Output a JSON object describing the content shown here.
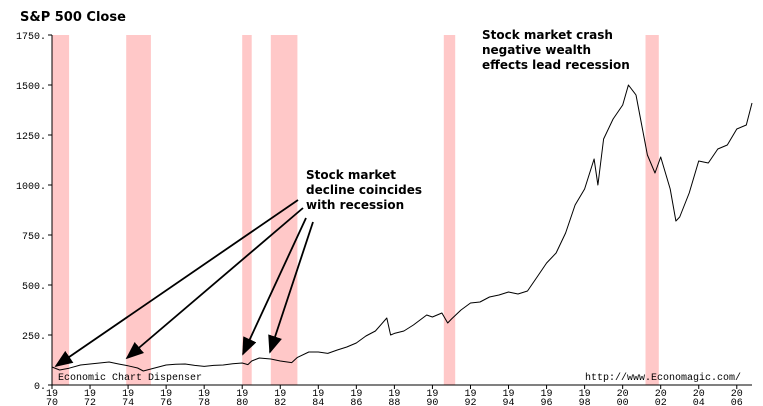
{
  "chart_data": {
    "type": "line",
    "title": "S&P 500 Close",
    "xlabel": "",
    "ylabel": "",
    "xlim": [
      1970,
      2006.8
    ],
    "ylim": [
      0,
      1750
    ],
    "yticks": [
      0,
      250,
      500,
      750,
      1000,
      1250,
      1500,
      1750
    ],
    "ytick_labels": [
      "0.",
      "250.",
      "500.",
      "750.",
      "1000.",
      "1250.",
      "1500.",
      "1750."
    ],
    "xticks": [
      {
        "year": 1970,
        "top": "19",
        "bottom": "70"
      },
      {
        "year": 1972,
        "top": "19",
        "bottom": "72"
      },
      {
        "year": 1974,
        "top": "19",
        "bottom": "74"
      },
      {
        "year": 1976,
        "top": "19",
        "bottom": "76"
      },
      {
        "year": 1978,
        "top": "19",
        "bottom": "78"
      },
      {
        "year": 1980,
        "top": "19",
        "bottom": "80"
      },
      {
        "year": 1982,
        "top": "19",
        "bottom": "82"
      },
      {
        "year": 1984,
        "top": "19",
        "bottom": "84"
      },
      {
        "year": 1986,
        "top": "19",
        "bottom": "86"
      },
      {
        "year": 1988,
        "top": "19",
        "bottom": "88"
      },
      {
        "year": 1990,
        "top": "19",
        "bottom": "90"
      },
      {
        "year": 1992,
        "top": "19",
        "bottom": "92"
      },
      {
        "year": 1994,
        "top": "19",
        "bottom": "94"
      },
      {
        "year": 1996,
        "top": "19",
        "bottom": "96"
      },
      {
        "year": 1998,
        "top": "19",
        "bottom": "98"
      },
      {
        "year": 2000,
        "top": "20",
        "bottom": "00"
      },
      {
        "year": 2002,
        "top": "20",
        "bottom": "02"
      },
      {
        "year": 2004,
        "top": "20",
        "bottom": "04"
      },
      {
        "year": 2006,
        "top": "20",
        "bottom": "06"
      }
    ],
    "recessions": [
      [
        1970.0,
        1970.9
      ],
      [
        1973.9,
        1975.2
      ],
      [
        1980.0,
        1980.5
      ],
      [
        1981.5,
        1982.9
      ],
      [
        1990.6,
        1991.2
      ],
      [
        2001.2,
        2001.9
      ]
    ],
    "series": [
      {
        "x": [
          1970.0,
          1970.4,
          1970.9,
          1971.5,
          1972.0,
          1972.5,
          1973.0,
          1973.5,
          1974.0,
          1974.5,
          1974.8,
          1975.2,
          1975.6,
          1976.0,
          1976.5,
          1977.0,
          1977.5,
          1978.0,
          1978.5,
          1979.0,
          1979.5,
          1980.0,
          1980.3,
          1980.5,
          1980.9,
          1981.5,
          1982.0,
          1982.6,
          1982.9,
          1983.5,
          1984.0,
          1984.5,
          1985.0,
          1985.5,
          1986.0,
          1986.5,
          1987.0,
          1987.6,
          1987.8,
          1988.0,
          1988.5,
          1989.0,
          1989.7,
          1990.0,
          1990.5,
          1990.8,
          1991.0,
          1991.5,
          1992.0,
          1992.5,
          1993.0,
          1993.5,
          1994.0,
          1994.5,
          1995.0,
          1995.5,
          1996.0,
          1996.5,
          1997.0,
          1997.5,
          1998.0,
          1998.5,
          1998.7,
          1999.0,
          1999.5,
          2000.0,
          2000.3,
          2000.7,
          2001.0,
          2001.3,
          2001.7,
          2002.0,
          2002.5,
          2002.8,
          2003.0,
          2003.5,
          2004.0,
          2004.5,
          2005.0,
          2005.5,
          2006.0,
          2006.5,
          2006.8
        ],
        "y": [
          90,
          75,
          84,
          100,
          105,
          110,
          115,
          105,
          96,
          85,
          70,
          80,
          90,
          100,
          104,
          105,
          98,
          93,
          98,
          100,
          106,
          110,
          102,
          120,
          135,
          130,
          120,
          112,
          138,
          165,
          165,
          158,
          175,
          190,
          210,
          245,
          270,
          335,
          250,
          258,
          270,
          300,
          350,
          340,
          360,
          310,
          330,
          375,
          410,
          415,
          440,
          450,
          465,
          455,
          470,
          540,
          610,
          660,
          760,
          900,
          980,
          1130,
          1000,
          1230,
          1330,
          1400,
          1500,
          1450,
          1300,
          1150,
          1060,
          1140,
          980,
          820,
          840,
          960,
          1120,
          1110,
          1180,
          1200,
          1280,
          1300,
          1410
        ]
      }
    ],
    "annotations": [
      {
        "lines": [
          "Stock market crash",
          "negative wealth",
          "effects lead recession"
        ]
      },
      {
        "lines": [
          "Stock market",
          "decline coincides",
          "with recession"
        ]
      }
    ],
    "credits": {
      "left": "Economic Chart Dispenser",
      "right": "http://www.Economagic.com/"
    }
  }
}
